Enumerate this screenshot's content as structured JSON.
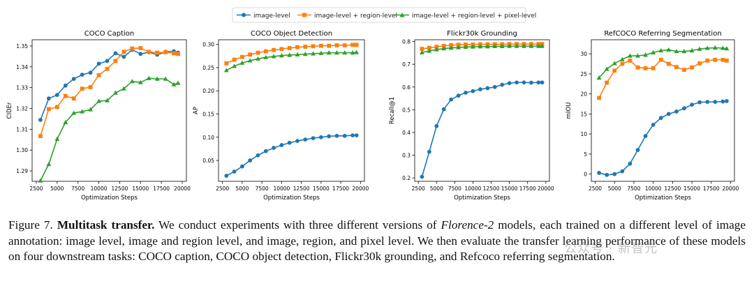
{
  "legend": {
    "entries": [
      "image-level",
      "image-level + region-level",
      "image-level + region-level + pixel-level"
    ]
  },
  "colors": {
    "s0": "#1f77b4",
    "s1": "#ff7f0e",
    "s2": "#2ca02c"
  },
  "xlabel": "Optimization Steps",
  "chart_data": [
    {
      "type": "line",
      "title": "COCO Caption",
      "ylabel": "CIDEr",
      "xlim": [
        2000,
        20500
      ],
      "ylim": [
        1.285,
        1.353
      ],
      "xticks": [
        2500,
        5000,
        7500,
        10000,
        12500,
        15000,
        17500,
        20000
      ],
      "yticks": [
        1.29,
        1.3,
        1.31,
        1.32,
        1.33,
        1.34,
        1.35
      ],
      "ytick_labels": [
        "1.29",
        "1.30",
        "1.31",
        "1.32",
        "1.33",
        "1.34",
        "1.35"
      ],
      "x": [
        3000,
        4000,
        5000,
        6000,
        7000,
        8000,
        9000,
        10000,
        11000,
        12000,
        13000,
        14000,
        15000,
        16000,
        17000,
        18000,
        19000,
        19500
      ],
      "series": [
        {
          "name": "image-level",
          "values": [
            1.3145,
            1.3248,
            1.3265,
            1.331,
            1.3342,
            1.3362,
            1.3372,
            1.3415,
            1.3428,
            1.3465,
            1.3448,
            1.3482,
            1.3462,
            1.347,
            1.3458,
            1.3472,
            1.3475,
            1.3468
          ]
        },
        {
          "name": "image-level + region-level",
          "values": [
            1.3067,
            1.3197,
            1.3207,
            1.326,
            1.3248,
            1.3295,
            1.3302,
            1.336,
            1.339,
            1.3428,
            1.3472,
            1.3488,
            1.349,
            1.3472,
            1.3468,
            1.347,
            1.3465,
            1.3462
          ]
        },
        {
          "name": "image-level + region-level + pixel-level",
          "values": [
            1.2853,
            1.2932,
            1.3053,
            1.3133,
            1.3178,
            1.3185,
            1.3195,
            1.3235,
            1.3238,
            1.3275,
            1.3295,
            1.333,
            1.3325,
            1.3345,
            1.3342,
            1.3342,
            1.3315,
            1.3322
          ]
        }
      ]
    },
    {
      "type": "line",
      "title": "COCO Object Detection",
      "ylabel": "AP",
      "xlim": [
        2000,
        20500
      ],
      "ylim": [
        0.005,
        0.31
      ],
      "xticks": [
        2500,
        5000,
        7500,
        10000,
        12500,
        15000,
        17500,
        20000
      ],
      "yticks": [
        0.05,
        0.1,
        0.15,
        0.2,
        0.25,
        0.3
      ],
      "ytick_labels": [
        "0.05",
        "0.10",
        "0.15",
        "0.20",
        "0.25",
        "0.30"
      ],
      "x": [
        3000,
        4000,
        5000,
        6000,
        7000,
        8000,
        9000,
        10000,
        11000,
        12000,
        13000,
        14000,
        15000,
        16000,
        17000,
        18000,
        19000,
        19500
      ],
      "series": [
        {
          "name": "image-level",
          "values": [
            0.017,
            0.026,
            0.037,
            0.05,
            0.061,
            0.07,
            0.077,
            0.083,
            0.088,
            0.092,
            0.095,
            0.098,
            0.1,
            0.102,
            0.103,
            0.103,
            0.104,
            0.104
          ]
        },
        {
          "name": "image-level + region-level",
          "values": [
            0.259,
            0.267,
            0.273,
            0.278,
            0.282,
            0.285,
            0.288,
            0.29,
            0.292,
            0.294,
            0.295,
            0.296,
            0.297,
            0.297,
            0.298,
            0.298,
            0.299,
            0.299
          ]
        },
        {
          "name": "image-level + region-level + pixel-level",
          "values": [
            0.244,
            0.253,
            0.26,
            0.265,
            0.269,
            0.272,
            0.274,
            0.276,
            0.277,
            0.278,
            0.279,
            0.28,
            0.281,
            0.282,
            0.282,
            0.282,
            0.282,
            0.283
          ]
        }
      ]
    },
    {
      "type": "line",
      "title": "Flickr30k Grounding",
      "ylabel": "Recall@1",
      "xlim": [
        2000,
        20500
      ],
      "ylim": [
        0.185,
        0.808
      ],
      "xticks": [
        2500,
        5000,
        7500,
        10000,
        12500,
        15000,
        17500,
        20000
      ],
      "yticks": [
        0.2,
        0.3,
        0.4,
        0.5,
        0.6,
        0.7,
        0.8
      ],
      "ytick_labels": [
        "0.2",
        "0.3",
        "0.4",
        "0.5",
        "0.6",
        "0.7",
        "0.8"
      ],
      "x": [
        3000,
        4000,
        5000,
        6000,
        7000,
        8000,
        9000,
        10000,
        11000,
        12000,
        13000,
        14000,
        15000,
        16000,
        17000,
        18000,
        19000,
        19500
      ],
      "series": [
        {
          "name": "image-level",
          "values": [
            0.205,
            0.315,
            0.428,
            0.502,
            0.545,
            0.562,
            0.575,
            0.582,
            0.59,
            0.595,
            0.6,
            0.61,
            0.617,
            0.62,
            0.62,
            0.619,
            0.62,
            0.62
          ]
        },
        {
          "name": "image-level + region-level",
          "values": [
            0.768,
            0.772,
            0.777,
            0.781,
            0.784,
            0.786,
            0.787,
            0.787,
            0.788,
            0.788,
            0.788,
            0.788,
            0.789,
            0.789,
            0.789,
            0.789,
            0.789,
            0.789
          ]
        },
        {
          "name": "image-level + region-level + pixel-level",
          "values": [
            0.752,
            0.759,
            0.765,
            0.769,
            0.772,
            0.774,
            0.776,
            0.777,
            0.778,
            0.778,
            0.779,
            0.779,
            0.78,
            0.78,
            0.78,
            0.78,
            0.78,
            0.78
          ]
        }
      ]
    },
    {
      "type": "line",
      "title": "RefCOCO Referring Segmentation",
      "ylabel": "mIOU",
      "xlim": [
        2000,
        20500
      ],
      "ylim": [
        -1.8,
        33.5
      ],
      "xticks": [
        2500,
        5000,
        7500,
        10000,
        12500,
        15000,
        17500,
        20000
      ],
      "yticks": [
        0,
        5,
        10,
        15,
        20,
        25,
        30
      ],
      "ytick_labels": [
        "0",
        "5",
        "10",
        "15",
        "20",
        "25",
        "30"
      ],
      "x": [
        3000,
        4000,
        5000,
        6000,
        7000,
        8000,
        9000,
        10000,
        11000,
        12000,
        13000,
        14000,
        15000,
        16000,
        17000,
        18000,
        19000,
        19500
      ],
      "series": [
        {
          "name": "image-level",
          "values": [
            0.3,
            -0.2,
            0.0,
            0.7,
            2.6,
            6.0,
            9.5,
            12.3,
            14.0,
            15.0,
            15.6,
            16.4,
            17.3,
            17.9,
            18.0,
            18.0,
            18.1,
            18.2
          ]
        },
        {
          "name": "image-level + region-level",
          "values": [
            19.0,
            22.8,
            25.8,
            27.5,
            28.3,
            26.6,
            26.4,
            26.4,
            28.5,
            27.5,
            26.7,
            26.0,
            26.6,
            27.6,
            28.3,
            28.5,
            28.5,
            28.3
          ]
        },
        {
          "name": "image-level + region-level + pixel-level",
          "values": [
            24.0,
            26.2,
            27.6,
            28.6,
            29.5,
            29.5,
            29.7,
            30.3,
            30.8,
            31.0,
            30.6,
            30.6,
            30.8,
            31.2,
            31.4,
            31.5,
            31.4,
            31.3
          ]
        }
      ]
    }
  ],
  "caption": {
    "figure_label": "Figure 7.",
    "bold_title": "Multitask transfer.",
    "text_before_model": "We conduct experiments with three different versions of",
    "model_name": "Florence-2",
    "text_after_model": "models, each trained on a different level of image annotation: image level, image and region level, and image, region, and pixel level. We then evaluate the transfer learning performance of these models on four downstream tasks: COCO caption, COCO object detection, Flickr30k grounding, and Refcoco referring segmentation."
  },
  "watermark": "公众号 · 新智元"
}
